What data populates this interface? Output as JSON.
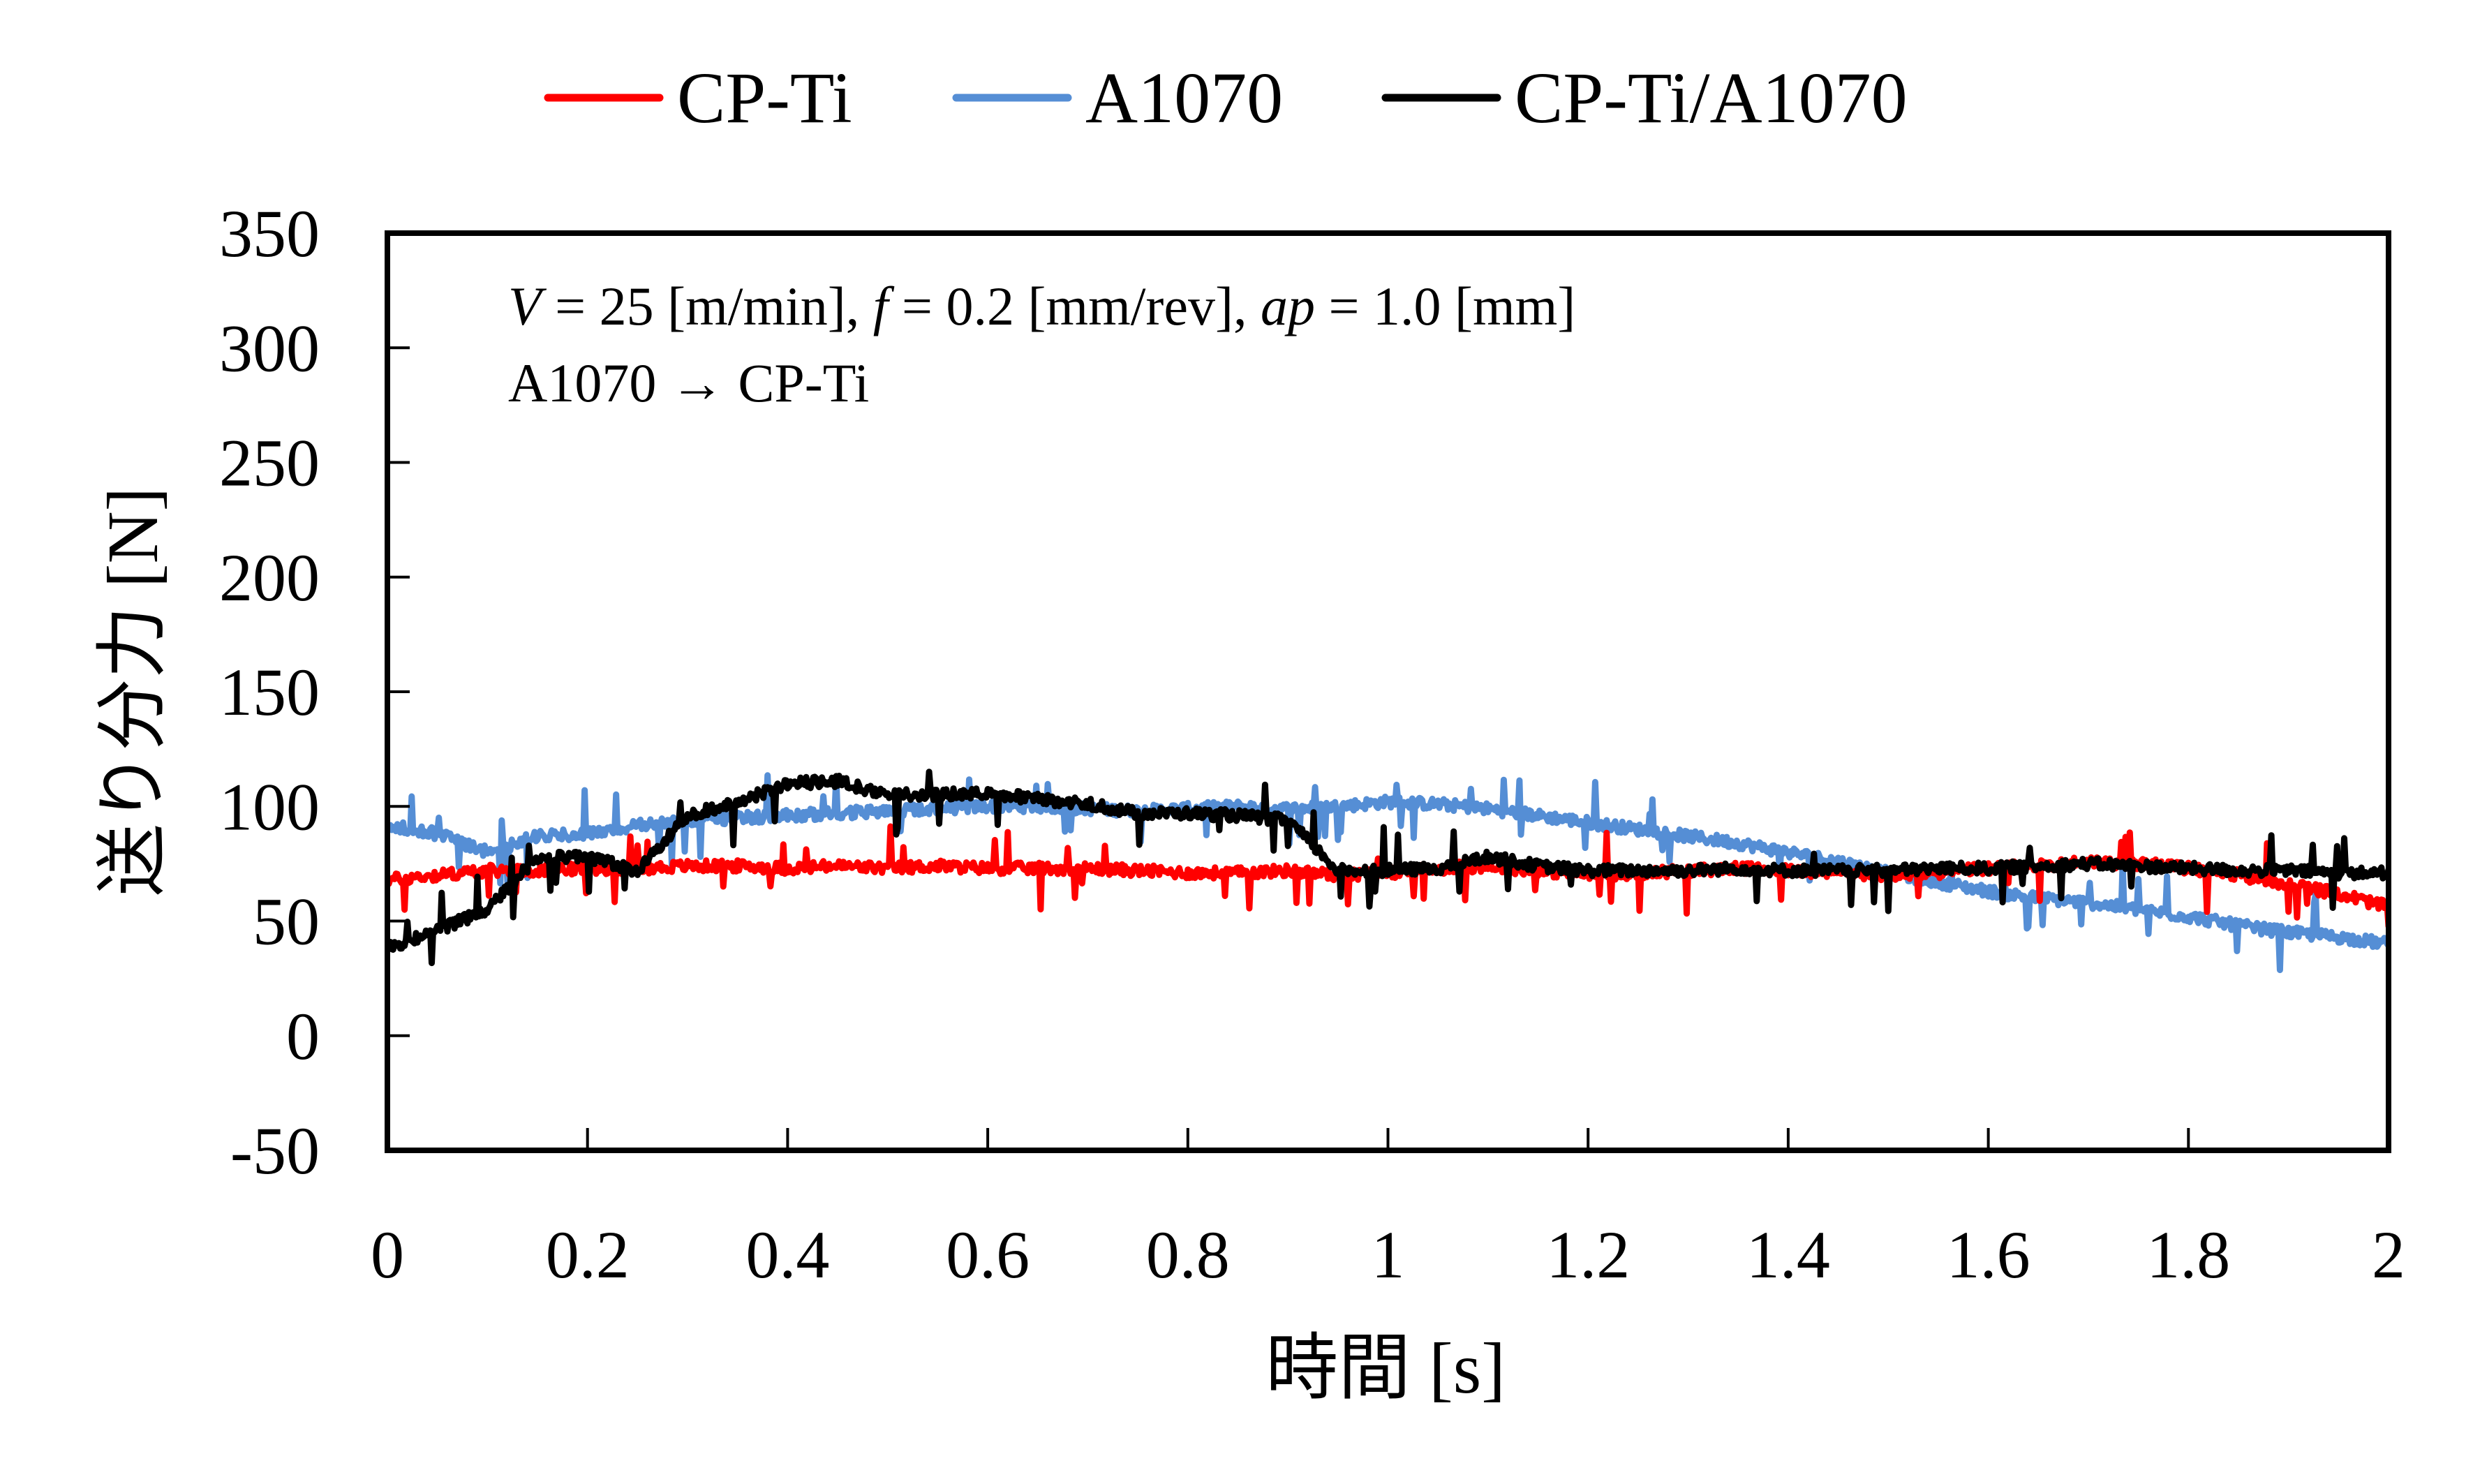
{
  "chart_data": {
    "type": "line",
    "title": "",
    "xlabel": "時間 [s]",
    "ylabel": "送り分力 [N]",
    "xlim": [
      0,
      2
    ],
    "ylim": [
      -50,
      350
    ],
    "xticks": [
      0,
      0.2,
      0.4,
      0.6,
      0.8,
      1,
      1.2,
      1.4,
      1.6,
      1.8,
      2
    ],
    "xtick_labels": [
      "0",
      "0.2",
      "0.4",
      "0.6",
      "0.8",
      "1",
      "1.2",
      "1.4",
      "1.6",
      "1.8",
      "2"
    ],
    "yticks": [
      -50,
      0,
      50,
      100,
      150,
      200,
      250,
      300,
      350
    ],
    "ytick_labels": [
      "-50",
      "0",
      "50",
      "100",
      "150",
      "200",
      "250",
      "300",
      "350"
    ],
    "grid": false,
    "legend_position": "top-center",
    "annotations": [
      {
        "text_parts": [
          {
            "t": "V",
            "italic": true
          },
          {
            "t": " = 25 [m/min], ",
            "italic": false
          },
          {
            "t": "f",
            "italic": true
          },
          {
            "t": " = 0.2 [mm/rev], ",
            "italic": false
          },
          {
            "t": "ap",
            "italic": true
          },
          {
            "t": " = 1.0 [mm]",
            "italic": false
          }
        ],
        "plain": "V = 25 [m/min], f = 0.2 [mm/rev], ap = 1.0 [mm]"
      },
      {
        "plain": "A1070 → CP-Ti"
      }
    ],
    "x": [
      0,
      0.05,
      0.1,
      0.15,
      0.2,
      0.25,
      0.3,
      0.35,
      0.4,
      0.45,
      0.5,
      0.55,
      0.6,
      0.65,
      0.7,
      0.75,
      0.8,
      0.85,
      0.9,
      0.95,
      1.0,
      1.05,
      1.1,
      1.15,
      1.2,
      1.25,
      1.3,
      1.35,
      1.4,
      1.45,
      1.5,
      1.55,
      1.6,
      1.65,
      1.7,
      1.75,
      1.8,
      1.85,
      1.9,
      1.95,
      2.0
    ],
    "series": [
      {
        "name": "CP-Ti",
        "color": "#ff0000",
        "values": [
          68,
          70,
          72,
          72,
          73,
          73,
          74,
          74,
          73,
          74,
          73,
          74,
          73,
          73,
          73,
          72,
          71,
          71,
          72,
          70,
          71,
          73,
          74,
          72,
          70,
          71,
          72,
          73,
          72,
          71,
          70,
          71,
          73,
          74,
          76,
          75,
          73,
          70,
          66,
          62,
          56
        ]
      },
      {
        "name": "A1070",
        "color": "#558ed5",
        "values": [
          92,
          88,
          80,
          87,
          88,
          92,
          94,
          95,
          96,
          97,
          98,
          99,
          100,
          100,
          99,
          98,
          99,
          100,
          99,
          100,
          102,
          101,
          99,
          96,
          93,
          90,
          87,
          84,
          80,
          76,
          71,
          67,
          63,
          60,
          58,
          55,
          52,
          48,
          45,
          43,
          40
        ]
      },
      {
        "name": "CP-Ti/A1070",
        "color": "#000000",
        "values": [
          38,
          46,
          55,
          78,
          78,
          72,
          96,
          102,
          110,
          111,
          105,
          105,
          106,
          103,
          101,
          97,
          97,
          96,
          94,
          72,
          72,
          73,
          78,
          74,
          72,
          72,
          72,
          73,
          72,
          72,
          72,
          73,
          73,
          74,
          75,
          74,
          73,
          72,
          72,
          71,
          71
        ]
      }
    ]
  }
}
